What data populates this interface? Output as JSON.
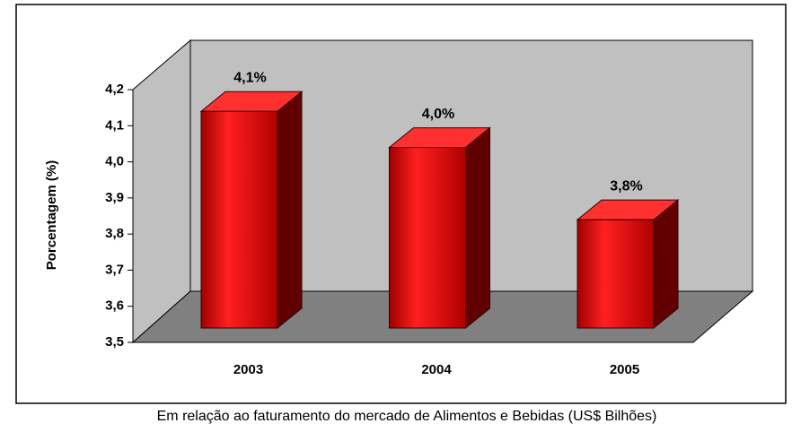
{
  "chart_data": {
    "type": "bar3d",
    "categories": [
      "2003",
      "2004",
      "2005"
    ],
    "values": [
      4.1,
      4.0,
      3.8
    ],
    "value_labels": [
      "4,1%",
      "4,0%",
      "3,8%"
    ],
    "color": "#e00000",
    "ylim": [
      3.5,
      4.2
    ],
    "yticks": [
      {
        "value": 3.5,
        "label": "3,5"
      },
      {
        "value": 3.6,
        "label": "3,6"
      },
      {
        "value": 3.7,
        "label": "3,7"
      },
      {
        "value": 3.8,
        "label": "3,8"
      },
      {
        "value": 3.9,
        "label": "3,9"
      },
      {
        "value": 4.0,
        "label": "4,0"
      },
      {
        "value": 4.1,
        "label": "4,1"
      },
      {
        "value": 4.2,
        "label": "4,2"
      }
    ],
    "y_label": "Porcentagem (%)",
    "x_label": "Em relação ao faturamento do mercado de Alimentos e Bebidas (US$ Bilhões)"
  }
}
